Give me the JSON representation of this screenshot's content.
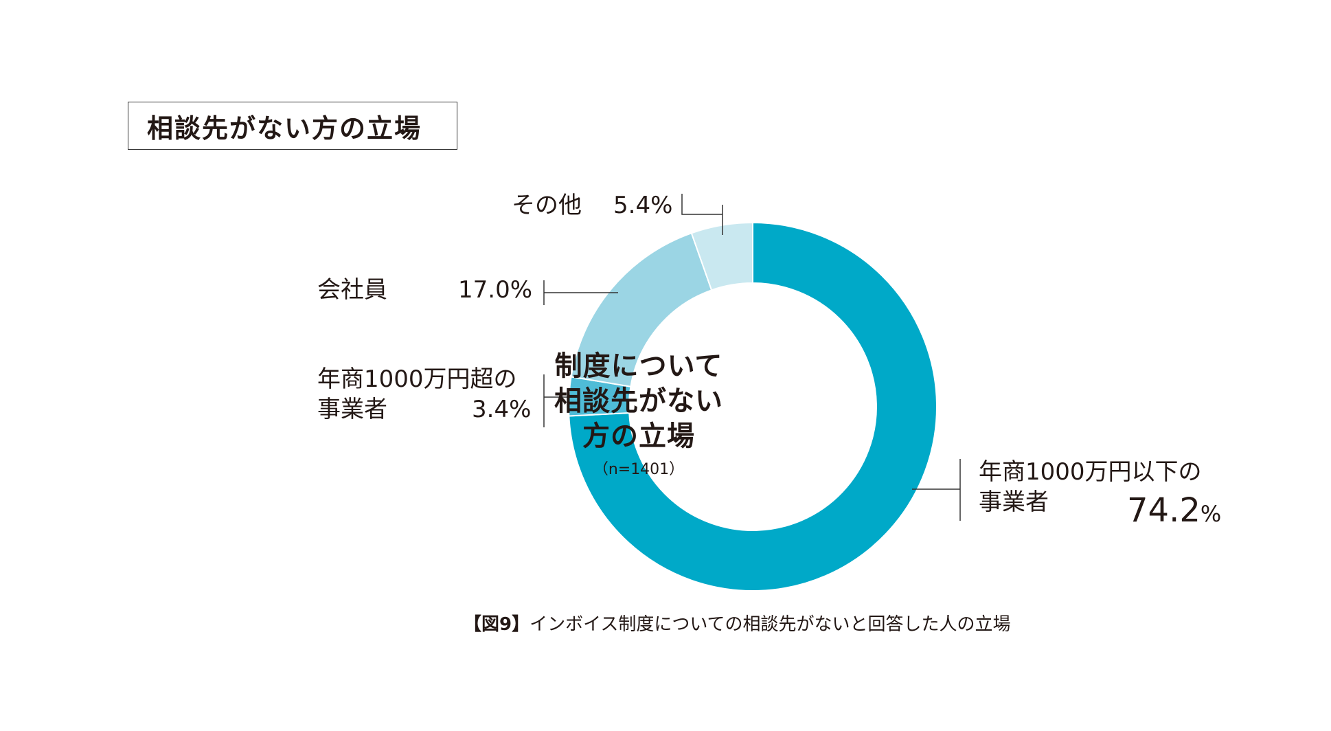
{
  "header": {
    "title": "相談先がない方の立場"
  },
  "chart_data": {
    "type": "pie",
    "variant": "donut",
    "start": "top",
    "direction": "clockwise",
    "categories": [
      "年商1000万円以下の事業者",
      "年商1000万円超の事業者",
      "会社員",
      "その他"
    ],
    "values": [
      74.2,
      3.4,
      17.0,
      5.4
    ],
    "labels": [
      {
        "lines": [
          "年商1000万円以下の",
          "事業者"
        ],
        "value": "74.2",
        "unit": "%"
      },
      {
        "lines": [
          "年商1000万円超の",
          "事業者"
        ],
        "value": "3.4%"
      },
      {
        "lines": [
          "会社員"
        ],
        "value": "17.0%"
      },
      {
        "lines": [
          "その他"
        ],
        "value": "5.4%"
      }
    ],
    "colors": [
      "#00a9c8",
      "#4fbcd7",
      "#9bd5e4",
      "#c9e8f0"
    ],
    "center": {
      "lines": [
        "制度について",
        "相談先がない",
        "方の立場"
      ],
      "sample": "（n=1401）"
    }
  },
  "caption": {
    "tag": "【図9】",
    "text": "インボイス制度についての相談先がないと回答した人の立場"
  }
}
